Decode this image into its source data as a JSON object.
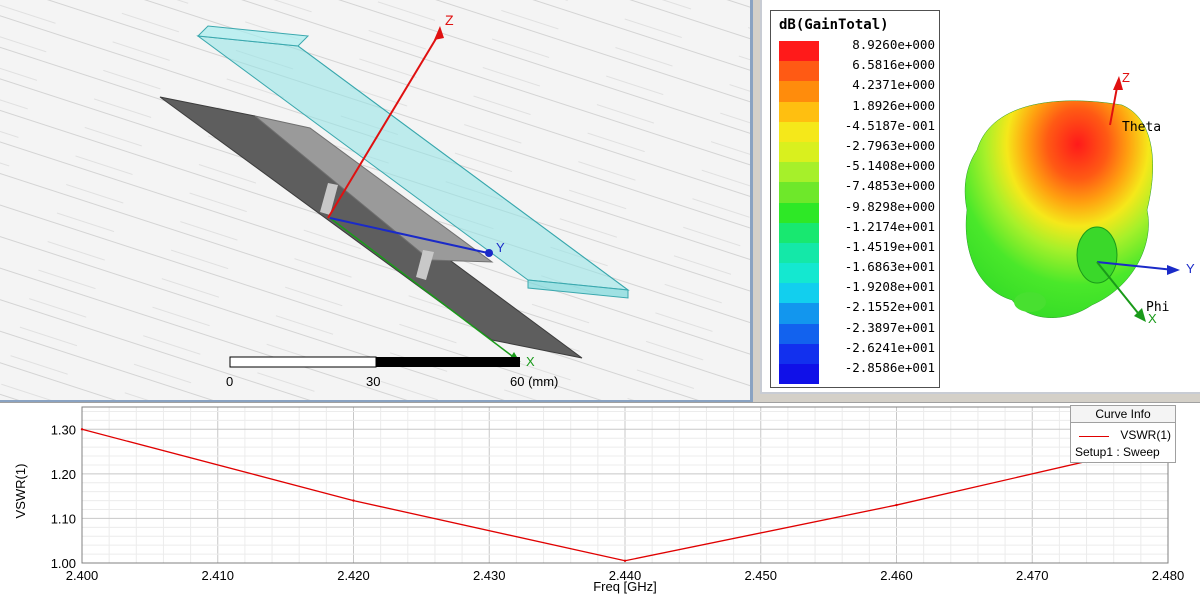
{
  "model_view": {
    "axes": {
      "x": "X",
      "y": "Y",
      "z": "Z"
    },
    "scale_bar": {
      "ticks": [
        "0",
        "30",
        "60 (mm)"
      ]
    }
  },
  "radiation_pattern": {
    "legend_title": "dB(GainTotal)",
    "legend_levels": [
      {
        "value": "8.9260e+000",
        "color": "#ff1a1a"
      },
      {
        "value": "6.5816e+000",
        "color": "#ff5a14"
      },
      {
        "value": "4.2371e+000",
        "color": "#ff8c0c"
      },
      {
        "value": "1.8926e+000",
        "color": "#ffbf10"
      },
      {
        "value": "-4.5187e-001",
        "color": "#f5e81a"
      },
      {
        "value": "-2.7963e+000",
        "color": "#d9f01e"
      },
      {
        "value": "-5.1408e+000",
        "color": "#a6f02a"
      },
      {
        "value": "-7.4853e+000",
        "color": "#6ee82a"
      },
      {
        "value": "-9.8298e+000",
        "color": "#2ee826"
      },
      {
        "value": "-1.2174e+001",
        "color": "#18e870"
      },
      {
        "value": "-1.4519e+001",
        "color": "#14e8a8"
      },
      {
        "value": "-1.6863e+001",
        "color": "#14e8d0"
      },
      {
        "value": "-1.9208e+001",
        "color": "#12cfee"
      },
      {
        "value": "-2.1552e+001",
        "color": "#1296ee"
      },
      {
        "value": "-2.3897e+001",
        "color": "#1262ee"
      },
      {
        "value": "-2.6241e+001",
        "color": "#1230ee"
      },
      {
        "value": "-2.8586e+001",
        "color": "#1010e8"
      }
    ],
    "axes": {
      "z": "Z",
      "y": "Y",
      "x": "X",
      "theta": "Theta",
      "phi": "Phi"
    }
  },
  "chart_data": {
    "type": "line",
    "title": "",
    "xlabel": "Freq [GHz]",
    "ylabel": "VSWR(1)",
    "x_ticks": [
      "2.400",
      "2.410",
      "2.420",
      "2.430",
      "2.440",
      "2.450",
      "2.460",
      "2.470",
      "2.480"
    ],
    "y_ticks": [
      "1.00",
      "1.10",
      "1.20",
      "1.30"
    ],
    "xlim": [
      2.4,
      2.48
    ],
    "ylim": [
      1.0,
      1.35
    ],
    "grid": true,
    "legend_position": "top-right",
    "series": [
      {
        "name": "VSWR(1)",
        "color": "#e00000",
        "x": [
          2.4,
          2.42,
          2.44,
          2.46,
          2.48
        ],
        "y": [
          1.3,
          1.14,
          1.005,
          1.13,
          1.27
        ]
      }
    ]
  },
  "curve_info": {
    "header": "Curve Info",
    "entry": "VSWR(1)",
    "setup": "Setup1 : Sweep"
  }
}
